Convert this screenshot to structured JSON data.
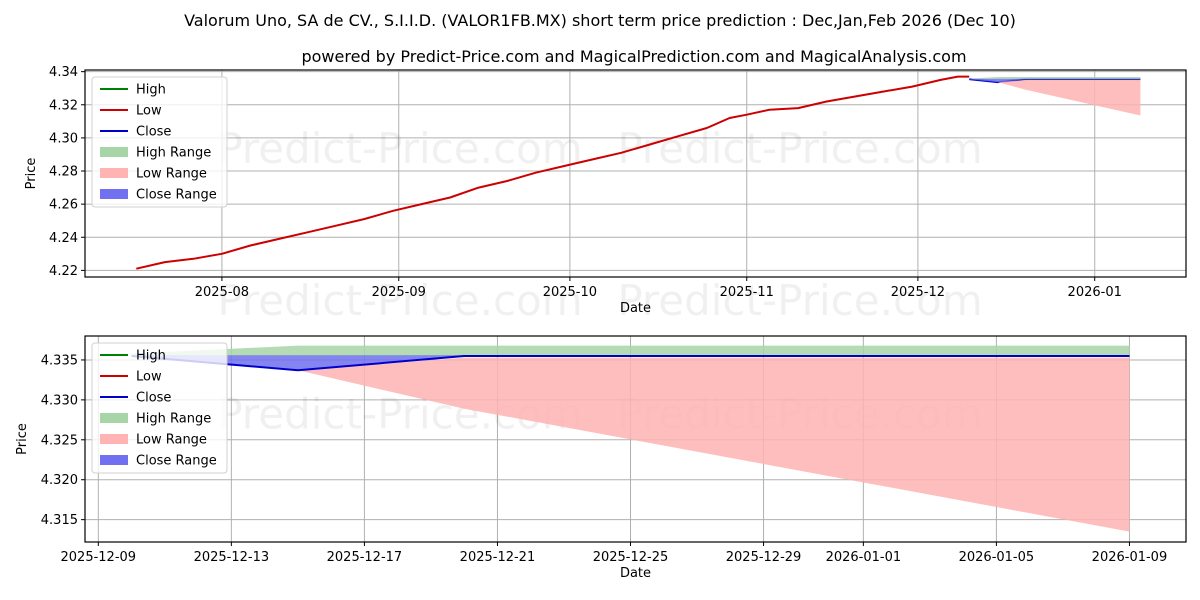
{
  "header": {
    "title": "Valorum Uno, SA de CV., S.I.I.D. (VALOR1FB.MX) short term price prediction : Dec,Jan,Feb 2026 (Dec 10)",
    "subtitle": "powered by Predict-Price.com and MagicalPrediction.com and MagicalAnalysis.com"
  },
  "watermark": "Predict-Price.com",
  "colors": {
    "high": "#008000",
    "low": "#cc0000",
    "close": "#0000cc",
    "high_range": "#a8d5a8",
    "low_range": "#ffb3b3",
    "close_range": "#7070f0",
    "grid": "#b0b0b0"
  },
  "legend": [
    {
      "label": "High",
      "type": "line",
      "color_key": "high"
    },
    {
      "label": "Low",
      "type": "line",
      "color_key": "low"
    },
    {
      "label": "Close",
      "type": "line",
      "color_key": "close"
    },
    {
      "label": "High Range",
      "type": "patch",
      "color_key": "high_range"
    },
    {
      "label": "Low Range",
      "type": "patch",
      "color_key": "low_range"
    },
    {
      "label": "Close Range",
      "type": "patch",
      "color_key": "close_range"
    }
  ],
  "chart_data": [
    {
      "type": "line",
      "title": "Valorum Uno, SA de CV., S.I.I.D. (VALOR1FB.MX) short term price prediction : Dec,Jan,Feb 2026 (Dec 10)",
      "xlabel": "Date",
      "ylabel": "Price",
      "ylim": [
        4.216,
        4.341
      ],
      "xlim": [
        "2025-07-08",
        "2026-01-17"
      ],
      "grid": true,
      "legend_position": "upper left",
      "yticks": [
        4.22,
        4.24,
        4.26,
        4.28,
        4.3,
        4.32,
        4.34
      ],
      "ytick_labels": [
        "4.22",
        "4.24",
        "4.26",
        "4.28",
        "4.30",
        "4.32",
        "4.34"
      ],
      "xticks": [
        "2025-08-01",
        "2025-09-01",
        "2025-10-01",
        "2025-11-01",
        "2025-12-01",
        "2026-01-01"
      ],
      "xtick_labels": [
        "2025-08",
        "2025-09",
        "2025-10",
        "2025-11",
        "2025-12",
        "2026-01"
      ],
      "series": [
        {
          "name": "Low",
          "x": [
            "2025-07-17",
            "2025-07-22",
            "2025-07-27",
            "2025-08-01",
            "2025-08-06",
            "2025-08-11",
            "2025-08-16",
            "2025-08-21",
            "2025-08-26",
            "2025-08-31",
            "2025-09-05",
            "2025-09-10",
            "2025-09-15",
            "2025-09-20",
            "2025-09-25",
            "2025-09-30",
            "2025-10-05",
            "2025-10-10",
            "2025-10-15",
            "2025-10-20",
            "2025-10-25",
            "2025-10-29",
            "2025-11-01",
            "2025-11-05",
            "2025-11-10",
            "2025-11-15",
            "2025-11-20",
            "2025-11-25",
            "2025-11-30",
            "2025-12-05",
            "2025-12-08",
            "2025-12-10"
          ],
          "values": [
            4.221,
            4.225,
            4.227,
            4.23,
            4.235,
            4.239,
            4.243,
            4.247,
            4.251,
            4.256,
            4.26,
            4.264,
            4.27,
            4.274,
            4.279,
            4.283,
            4.287,
            4.291,
            4.296,
            4.301,
            4.306,
            4.312,
            4.314,
            4.317,
            4.318,
            4.322,
            4.325,
            4.328,
            4.331,
            4.335,
            4.337,
            4.337
          ]
        },
        {
          "name": "Close",
          "x": [
            "2025-12-10",
            "2025-12-15",
            "2025-12-20",
            "2026-01-09"
          ],
          "values": [
            4.3355,
            4.3337,
            4.3355,
            4.3355
          ]
        },
        {
          "name": "High Range",
          "type": "area",
          "x": [
            "2025-12-10",
            "2025-12-15",
            "2025-12-20",
            "2026-01-09"
          ],
          "upper": [
            4.3358,
            4.3368,
            4.3368,
            4.3368
          ],
          "lower": [
            4.3355,
            4.3355,
            4.3355,
            4.3355
          ]
        },
        {
          "name": "Low Range",
          "type": "area",
          "x": [
            "2025-12-10",
            "2025-12-15",
            "2025-12-20",
            "2026-01-09"
          ],
          "upper": [
            4.3355,
            4.3337,
            4.335,
            4.335
          ],
          "lower": [
            4.3355,
            4.3337,
            4.329,
            4.3135
          ]
        },
        {
          "name": "Close Range",
          "type": "area",
          "x": [
            "2025-12-10",
            "2025-12-15",
            "2025-12-20",
            "2026-01-09"
          ],
          "upper": [
            4.3356,
            4.3356,
            4.3356,
            4.3356
          ],
          "lower": [
            4.3354,
            4.3337,
            4.3355,
            4.3355
          ]
        }
      ]
    },
    {
      "type": "line",
      "title": "",
      "xlabel": "Date",
      "ylabel": "Price",
      "ylim": [
        4.3122,
        4.338
      ],
      "xlim": [
        "2025-12-08.6",
        "2026-01-10.7"
      ],
      "grid": true,
      "legend_position": "upper left",
      "yticks": [
        4.315,
        4.32,
        4.325,
        4.33,
        4.335
      ],
      "ytick_labels": [
        "4.315",
        "4.320",
        "4.325",
        "4.330",
        "4.335"
      ],
      "xticks": [
        "2025-12-09",
        "2025-12-13",
        "2025-12-17",
        "2025-12-21",
        "2025-12-25",
        "2025-12-29",
        "2026-01-01",
        "2026-01-05",
        "2026-01-09"
      ],
      "xtick_labels": [
        "2025-12-09",
        "2025-12-13",
        "2025-12-17",
        "2025-12-21",
        "2025-12-25",
        "2025-12-29",
        "2026-01-01",
        "2026-01-05",
        "2026-01-09"
      ],
      "series": [
        {
          "name": "High Range",
          "type": "area",
          "x": [
            "2025-12-10",
            "2025-12-15",
            "2025-12-20",
            "2026-01-09"
          ],
          "upper": [
            4.3358,
            4.3368,
            4.3368,
            4.3368
          ],
          "lower": [
            4.3355,
            4.3355,
            4.3355,
            4.3355
          ]
        },
        {
          "name": "Low Range",
          "type": "area",
          "x": [
            "2025-12-10",
            "2025-12-15",
            "2025-12-20",
            "2026-01-09"
          ],
          "upper": [
            4.3355,
            4.3337,
            4.3353,
            4.3353
          ],
          "lower": [
            4.3355,
            4.3337,
            4.3289,
            4.3135
          ]
        },
        {
          "name": "Close Range",
          "type": "area",
          "x": [
            "2025-12-10",
            "2025-12-15",
            "2025-12-20",
            "2026-01-09"
          ],
          "upper": [
            4.3356,
            4.3356,
            4.3356,
            4.3356
          ],
          "lower": [
            4.3354,
            4.3337,
            4.3355,
            4.3355
          ]
        },
        {
          "name": "Close",
          "x": [
            "2025-12-10",
            "2025-12-15",
            "2025-12-20",
            "2026-01-09"
          ],
          "values": [
            4.3355,
            4.3337,
            4.3355,
            4.3355
          ]
        }
      ]
    }
  ]
}
